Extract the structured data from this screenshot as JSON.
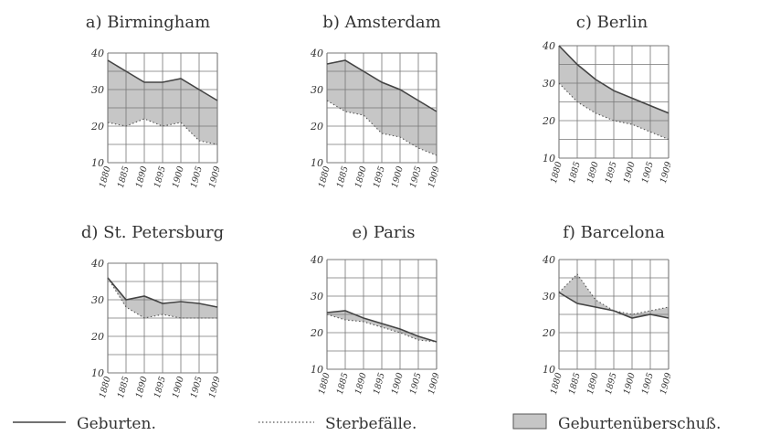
{
  "chart_data": [
    {
      "type": "area",
      "title": "a) Birmingham",
      "x": [
        "1880",
        "1885",
        "1890",
        "1895",
        "1900",
        "1905",
        "1909"
      ],
      "ylim": [
        10,
        40
      ],
      "yticks": [
        "10",
        "20",
        "30",
        "40"
      ],
      "series": [
        {
          "name": "Geburten.",
          "values": [
            38,
            35,
            32,
            32,
            33,
            30,
            27
          ]
        },
        {
          "name": "Sterbefälle.",
          "values": [
            21,
            20,
            22,
            20,
            21,
            16,
            15
          ]
        }
      ]
    },
    {
      "type": "area",
      "title": "b) Amsterdam",
      "x": [
        "1880",
        "1885",
        "1890",
        "1895",
        "1900",
        "1905",
        "1909"
      ],
      "ylim": [
        10,
        40
      ],
      "yticks": [
        "10",
        "20",
        "30",
        "40"
      ],
      "series": [
        {
          "name": "Geburten.",
          "values": [
            37,
            38,
            35,
            32,
            30,
            27,
            24
          ]
        },
        {
          "name": "Sterbefälle.",
          "values": [
            27,
            24,
            23,
            18,
            17,
            14,
            12
          ]
        }
      ]
    },
    {
      "type": "area",
      "title": "c) Berlin",
      "x": [
        "1880",
        "1885",
        "1890",
        "1895",
        "1900",
        "1905",
        "1909"
      ],
      "ylim": [
        10,
        40
      ],
      "yticks": [
        "10",
        "20",
        "30",
        "40"
      ],
      "series": [
        {
          "name": "Geburten.",
          "values": [
            40,
            35,
            31,
            28,
            26,
            24,
            22
          ]
        },
        {
          "name": "Sterbefälle.",
          "values": [
            30,
            25,
            22,
            20,
            19,
            17,
            15
          ]
        }
      ]
    },
    {
      "type": "area",
      "title": "d) St. Petersburg",
      "x": [
        "1880",
        "1885",
        "1890",
        "1895",
        "1900",
        "1905",
        "1909"
      ],
      "ylim": [
        10,
        40
      ],
      "yticks": [
        "10",
        "20",
        "30",
        "40"
      ],
      "series": [
        {
          "name": "Geburten.",
          "values": [
            36,
            30,
            31,
            29,
            29.5,
            29,
            28
          ]
        },
        {
          "name": "Sterbefälle.",
          "values": [
            36,
            28,
            25,
            26,
            25,
            25,
            25
          ]
        }
      ]
    },
    {
      "type": "area",
      "title": "e) Paris",
      "x": [
        "1880",
        "1885",
        "1890",
        "1895",
        "1900",
        "1905",
        "1909"
      ],
      "ylim": [
        10,
        40
      ],
      "yticks": [
        "10",
        "20",
        "30",
        "40"
      ],
      "series": [
        {
          "name": "Geburten.",
          "values": [
            25.5,
            26,
            24,
            22.5,
            21,
            19,
            17.5
          ]
        },
        {
          "name": "Sterbefälle.",
          "values": [
            25,
            23.5,
            23,
            21.5,
            20,
            18,
            17.5
          ]
        }
      ]
    },
    {
      "type": "area",
      "title": "f) Barcelona",
      "x": [
        "1880",
        "1885",
        "1890",
        "1895",
        "1900",
        "1905",
        "1909"
      ],
      "ylim": [
        10,
        40
      ],
      "yticks": [
        "10",
        "20",
        "30",
        "40"
      ],
      "series": [
        {
          "name": "Geburten.",
          "values": [
            31,
            28,
            27,
            26,
            24,
            25,
            24
          ]
        },
        {
          "name": "Sterbefälle.",
          "values": [
            31,
            36,
            29,
            26,
            25,
            26,
            27
          ]
        }
      ]
    }
  ],
  "legend": {
    "births": "Geburten.",
    "deaths": "Sterbefälle.",
    "surplus": "Geburtenüberschuß."
  },
  "colors": {
    "surplus_fill": "#c6c6c6",
    "line": "#444444",
    "grid": "#777777"
  }
}
